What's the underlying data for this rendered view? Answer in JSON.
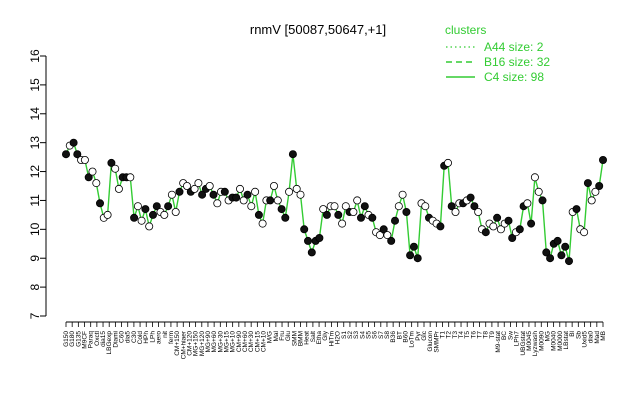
{
  "chart_data": {
    "type": "scatter",
    "title": "rnmV [50087,50647,+1]",
    "xlabel": "",
    "ylabel": "",
    "ylim": [
      7,
      16
    ],
    "yticks": [
      7,
      8,
      9,
      10,
      11,
      12,
      13,
      14,
      15,
      16
    ],
    "grid": false,
    "legend": {
      "title": "clusters",
      "position": "top-right",
      "color": "#33cc33",
      "entries": [
        {
          "label": "A44 size: 2",
          "style": "dotted"
        },
        {
          "label": "B16 size: 32",
          "style": "dashed"
        },
        {
          "label": "C4 size: 98",
          "style": "solid"
        }
      ]
    },
    "colors": {
      "line": "#33cc33",
      "point_fill_open": "#ffffff",
      "point_fill_dark": "#111111",
      "axis": "#000000"
    },
    "x_tick_labels": [
      "G150",
      "G180",
      "G135",
      "M9CF",
      "Paraq",
      "Oxctl",
      "dia15",
      "LBGexp",
      "Diami",
      "C60",
      "dia5",
      "C30",
      "Cold",
      "HPh",
      "LPh",
      "aero",
      "nit",
      "ferm",
      "CM+150",
      "CM+hiaer",
      "CM+120",
      "MG+150",
      "MG+120",
      "MG+90",
      "MG+60",
      "MG+30",
      "MG+15",
      "MG+10",
      "CM+90",
      "CM+60",
      "CM+30",
      "CM+15",
      "CM+10",
      "M/G",
      "Mal",
      "Fru",
      "Glu",
      "SMM",
      "BMM",
      "Heat",
      "Salt",
      "Etha",
      "Gly",
      "HiTm",
      "H2O",
      "S1",
      "S2",
      "S3",
      "S4",
      "S5",
      "S6",
      "S7",
      "S8",
      "B36",
      "BT",
      "B60",
      "LoTm",
      "Pyr",
      "Glc",
      "Glucon",
      "SMMPr",
      "T1",
      "T2",
      "T3",
      "T4",
      "T5",
      "T6",
      "T7",
      "T8",
      "T9",
      "M9-stat",
      "BC",
      "Sw",
      "LPh7",
      "UBGstat",
      "M0045",
      "Lyzwash",
      "M0090",
      "MG",
      "M0040",
      "M0000",
      "LBstat",
      "Bl",
      "Sb",
      "Uxid5",
      "dia0",
      "Mad",
      "MB"
    ],
    "y": [
      12.6,
      12.9,
      13.0,
      12.6,
      12.4,
      12.4,
      11.8,
      12.0,
      11.6,
      10.9,
      10.4,
      10.5,
      12.3,
      12.1,
      11.4,
      11.8,
      11.8,
      11.8,
      10.4,
      10.8,
      10.3,
      10.7,
      10.1,
      10.5,
      10.8,
      10.6,
      10.5,
      10.8,
      11.2,
      10.6,
      11.3,
      11.6,
      11.5,
      11.3,
      11.4,
      11.6,
      11.2,
      11.4,
      11.5,
      11.2,
      10.9,
      11.3,
      11.3,
      11.0,
      11.1,
      11.1,
      11.4,
      11.0,
      11.2,
      10.8,
      11.3,
      10.5,
      10.2,
      11.0,
      11.0,
      11.5,
      11.0,
      10.7,
      10.4,
      11.3,
      12.6,
      11.4,
      11.2,
      10.0,
      9.6,
      9.2,
      9.6,
      9.7,
      10.7,
      10.5,
      10.8,
      10.8,
      10.5,
      10.2,
      10.8,
      10.6,
      10.6,
      11.0,
      10.4,
      10.8,
      10.5,
      10.4,
      9.9,
      9.8,
      10.0,
      9.8,
      9.6,
      10.3,
      10.8,
      11.2,
      10.6,
      9.1,
      9.4,
      9.0,
      10.9,
      10.8,
      10.4,
      10.3,
      10.2,
      10.1,
      12.2,
      12.3,
      10.8,
      10.6,
      10.9,
      10.9,
      11.0,
      11.1,
      10.8,
      10.6,
      10.0,
      9.9,
      10.2,
      10.1,
      10.4,
      10.0,
      10.2,
      10.3,
      9.7,
      9.9,
      10.0,
      10.8,
      10.9,
      10.2,
      11.8,
      11.3,
      11.0,
      9.2,
      9.0,
      9.5,
      9.6,
      9.1,
      9.4,
      8.9,
      10.6,
      10.7,
      10.0,
      9.9,
      11.6,
      11.0,
      11.3,
      11.5,
      12.4
    ]
  }
}
